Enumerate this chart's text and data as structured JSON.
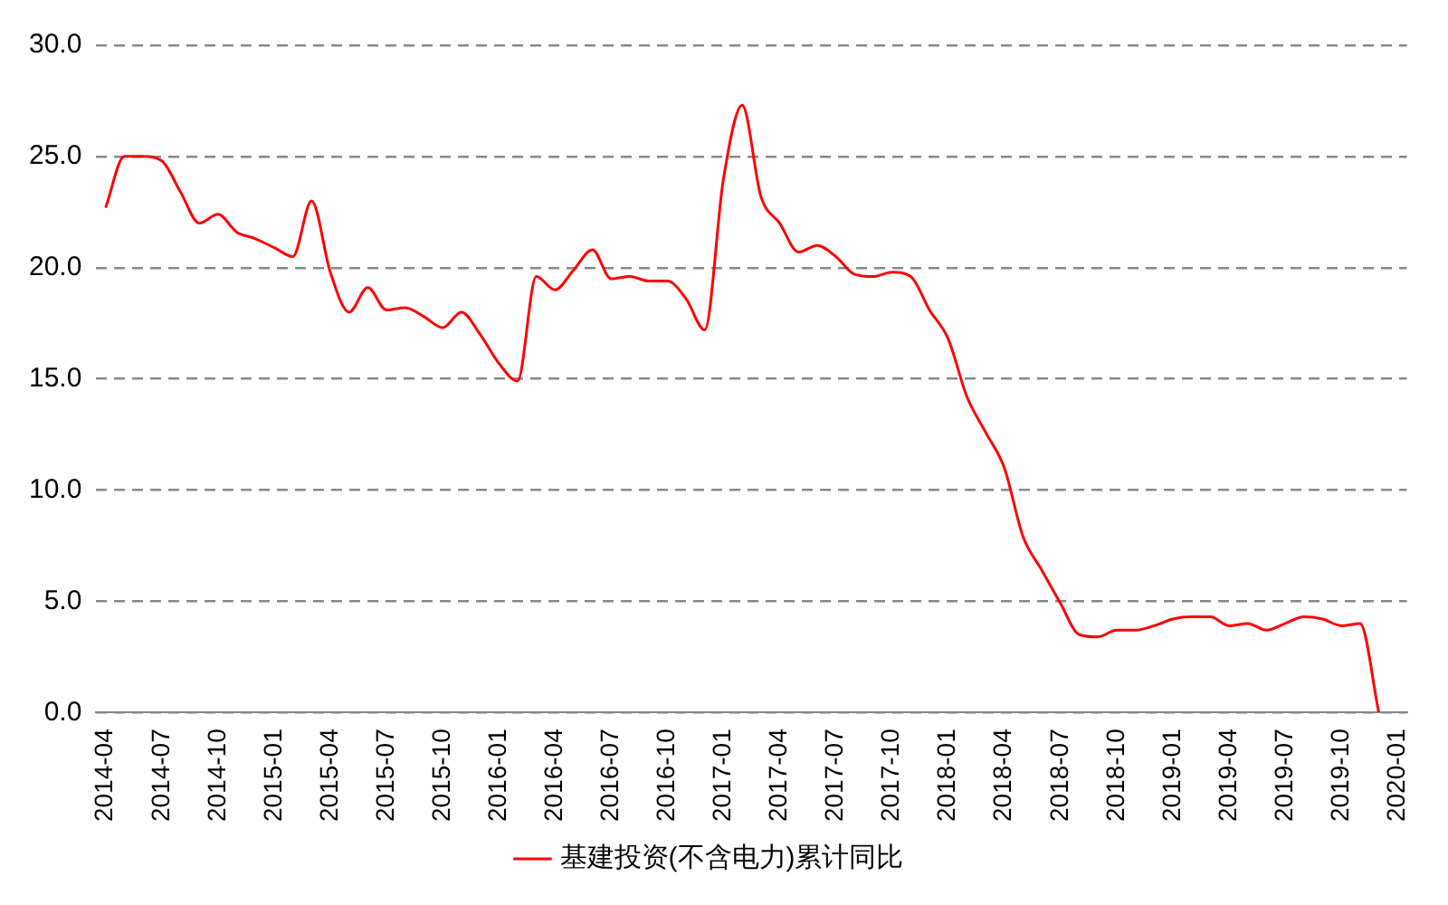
{
  "chart_data": {
    "type": "line",
    "categories": [
      "2014-04",
      null,
      null,
      "2014-07",
      null,
      null,
      "2014-10",
      null,
      null,
      "2015-01",
      null,
      null,
      "2015-04",
      null,
      null,
      "2015-07",
      null,
      null,
      "2015-10",
      null,
      null,
      "2016-01",
      null,
      null,
      "2016-04",
      null,
      null,
      "2016-07",
      null,
      null,
      "2016-10",
      null,
      null,
      "2017-01",
      null,
      null,
      "2017-04",
      null,
      null,
      "2017-07",
      null,
      null,
      "2017-10",
      null,
      null,
      "2018-01",
      null,
      null,
      "2018-04",
      null,
      null,
      "2018-07",
      null,
      null,
      "2018-10",
      null,
      null,
      "2019-01",
      null,
      null,
      "2019-04",
      null,
      null,
      "2019-07",
      null,
      null,
      "2019-10",
      null,
      null,
      "2020-01"
    ],
    "series": [
      {
        "name": "基建投资(不含电力)累计同比",
        "color": "#ff0000",
        "values": [
          22.7,
          25.0,
          25.0,
          24.8,
          23.4,
          22.0,
          22.4,
          21.6,
          21.3,
          20.9,
          20.5,
          23.0,
          19.8,
          18.0,
          19.1,
          18.1,
          18.2,
          17.8,
          17.3,
          18.0,
          17.0,
          15.7,
          14.9,
          19.6,
          19.0,
          19.9,
          20.8,
          19.5,
          19.6,
          19.4,
          19.4,
          18.6,
          17.2,
          24.0,
          27.3,
          23.2,
          22.0,
          20.7,
          21.0,
          20.5,
          19.7,
          19.6,
          19.8,
          19.6,
          18.1,
          16.8,
          14.2,
          12.6,
          11.0,
          7.9,
          6.4,
          4.9,
          3.5,
          3.4,
          3.7,
          3.7,
          3.9,
          4.2,
          4.3,
          4.3,
          3.9,
          4.0,
          3.7,
          4.0,
          4.3,
          4.2,
          3.9,
          4.0,
          0.0,
          null
        ]
      }
    ],
    "ylim": [
      0,
      30
    ],
    "yticks": [
      {
        "value": 0,
        "label": "0.0"
      },
      {
        "value": 5,
        "label": "5.0"
      },
      {
        "value": 10,
        "label": "10.0"
      },
      {
        "value": 15,
        "label": "15.0"
      },
      {
        "value": 20,
        "label": "20.0"
      },
      {
        "value": 25,
        "label": "25.0"
      },
      {
        "value": 30,
        "label": "30.0"
      }
    ],
    "grid": "y",
    "legend": "bottom",
    "marker": "none",
    "line_style": "solid"
  }
}
